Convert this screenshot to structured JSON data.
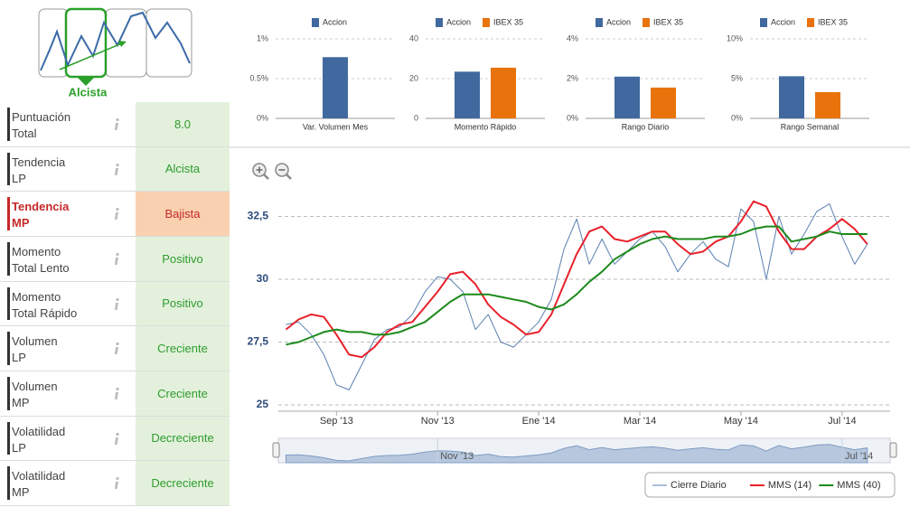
{
  "badge": {
    "label": "Alcista"
  },
  "table": {
    "rows": [
      {
        "label": [
          "Puntuación",
          "Total"
        ],
        "value": "8.0",
        "color": "#2e9b2e",
        "background": "#e3f1dc",
        "label_color": "#444444",
        "label_bold": false
      },
      {
        "label": [
          "Tendencia",
          "LP"
        ],
        "value": "Alcista",
        "color": "#2e9b2e",
        "background": "#e3f1dc",
        "label_color": "#444444",
        "label_bold": false
      },
      {
        "label": [
          "Tendencia",
          "MP"
        ],
        "value": "Bajista",
        "color": "#c62828",
        "background": "#f9d1b0",
        "label_color": "#c62828",
        "label_bold": true
      },
      {
        "label": [
          "Momento",
          "Total Lento"
        ],
        "value": "Positivo",
        "color": "#2e9b2e",
        "background": "#e3f1dc",
        "label_color": "#444444",
        "label_bold": false
      },
      {
        "label": [
          "Momento",
          "Total Rápido"
        ],
        "value": "Positivo",
        "color": "#2e9b2e",
        "background": "#e3f1dc",
        "label_color": "#444444",
        "label_bold": false
      },
      {
        "label": [
          "Volumen",
          "LP"
        ],
        "value": "Creciente",
        "color": "#2e9b2e",
        "background": "#e3f1dc",
        "label_color": "#444444",
        "label_bold": false
      },
      {
        "label": [
          "Volumen",
          "MP"
        ],
        "value": "Creciente",
        "color": "#2e9b2e",
        "background": "#e3f1dc",
        "label_color": "#444444",
        "label_bold": false
      },
      {
        "label": [
          "Volatilidad",
          "LP"
        ],
        "value": "Decreciente",
        "color": "#2e9b2e",
        "background": "#e3f1dc",
        "label_color": "#444444",
        "label_bold": false
      },
      {
        "label": [
          "Volatilidad",
          "MP"
        ],
        "value": "Decreciente",
        "color": "#2e9b2e",
        "background": "#e3f1dc",
        "label_color": "#444444",
        "label_bold": false
      }
    ]
  },
  "chart_data": [
    {
      "type": "bar",
      "categories": [
        "Var. Volumen Mes"
      ],
      "series": [
        {
          "name": "Accion",
          "color": "#41699f",
          "values": [
            0.77
          ]
        }
      ],
      "ylim": [
        0,
        1
      ],
      "yticks": [
        {
          "value": 0,
          "label": "0%"
        },
        {
          "value": 0.5,
          "label": "0.5%"
        },
        {
          "value": 1,
          "label": "1%"
        }
      ],
      "grid": true
    },
    {
      "type": "bar",
      "categories": [
        "Momento Rápido"
      ],
      "series": [
        {
          "name": "Accion",
          "color": "#41699f",
          "values": [
            23.5
          ]
        },
        {
          "name": "IBEX 35",
          "color": "#e8730c",
          "values": [
            25.5
          ]
        }
      ],
      "ylim": [
        0,
        40
      ],
      "yticks": [
        0,
        20,
        40
      ],
      "grid": true
    },
    {
      "type": "bar",
      "categories": [
        "Rango Diario"
      ],
      "series": [
        {
          "name": "Accion",
          "color": "#41699f",
          "values": [
            2.1
          ]
        },
        {
          "name": "IBEX 35",
          "color": "#e8730c",
          "values": [
            1.55
          ]
        }
      ],
      "ylim": [
        0,
        4
      ],
      "yticks": [
        {
          "value": 0,
          "label": "0%"
        },
        {
          "value": 2,
          "label": "2%"
        },
        {
          "value": 4,
          "label": "4%"
        }
      ],
      "grid": true
    },
    {
      "type": "bar",
      "categories": [
        "Rango Semanal"
      ],
      "series": [
        {
          "name": "Accion",
          "color": "#41699f",
          "values": [
            5.3
          ]
        },
        {
          "name": "IBEX 35",
          "color": "#e8730c",
          "values": [
            3.3
          ]
        }
      ],
      "ylim": [
        0,
        10
      ],
      "yticks": [
        {
          "value": 0,
          "label": "0%"
        },
        {
          "value": 5,
          "label": "5%"
        },
        {
          "value": 10,
          "label": "10%"
        }
      ],
      "grid": true
    },
    {
      "type": "line",
      "x": [
        0,
        0.25,
        0.5,
        0.75,
        1,
        1.25,
        1.5,
        1.75,
        2,
        2.25,
        2.5,
        2.75,
        3,
        3.25,
        3.5,
        3.75,
        4,
        4.25,
        4.5,
        4.75,
        5,
        5.25,
        5.5,
        5.75,
        6,
        6.25,
        6.5,
        6.75,
        7,
        7.25,
        7.5,
        7.75,
        8,
        8.25,
        8.5,
        8.75,
        9,
        9.25,
        9.5,
        9.75,
        10,
        10.25,
        10.5,
        10.75,
        11,
        11.25,
        11.5
      ],
      "xlim": [
        -0.15,
        11.95
      ],
      "xticks": [
        {
          "value": 1,
          "label": "Sep '13"
        },
        {
          "value": 3,
          "label": "Nov '13"
        },
        {
          "value": 5,
          "label": "Ene '14"
        },
        {
          "value": 7,
          "label": "Mar '14"
        },
        {
          "value": 9,
          "label": "May '14"
        },
        {
          "value": 11,
          "label": "Jul '14"
        }
      ],
      "navigator_xticks": [
        {
          "value": 3,
          "label": "Nov '13"
        },
        {
          "value": 11,
          "label": "Jul '14"
        }
      ],
      "ylim": [
        24.75,
        34.1
      ],
      "yticks": [
        25,
        {
          "value": 27.5,
          "label": "27,5"
        },
        30,
        {
          "value": 32.5,
          "label": "32,5"
        }
      ],
      "grid": true,
      "legend": "bottom-right",
      "series": [
        {
          "name": "Cierre Diario",
          "color": "#5a7fb0",
          "values": [
            28.2,
            28.3,
            27.8,
            27.0,
            25.8,
            25.6,
            26.6,
            27.6,
            28.0,
            28.1,
            28.6,
            29.5,
            30.1,
            30.0,
            29.5,
            28.0,
            28.6,
            27.5,
            27.3,
            27.8,
            28.3,
            29.2,
            31.2,
            32.4,
            30.6,
            31.6,
            30.6,
            31.1,
            31.6,
            31.9,
            31.3,
            30.3,
            31.0,
            31.5,
            30.8,
            30.5,
            32.8,
            32.3,
            30.0,
            32.5,
            31.0,
            31.8,
            32.7,
            33.0,
            31.7,
            30.6,
            31.4
          ]
        },
        {
          "name": "MMS (14)",
          "color": "#e8202a",
          "values": [
            28.0,
            28.4,
            28.6,
            28.5,
            27.8,
            27.0,
            26.9,
            27.3,
            27.9,
            28.2,
            28.3,
            28.9,
            29.5,
            30.2,
            30.3,
            29.8,
            29.0,
            28.5,
            28.2,
            27.8,
            27.9,
            28.6,
            29.8,
            31.0,
            31.9,
            32.1,
            31.6,
            31.5,
            31.7,
            31.9,
            31.9,
            31.4,
            31.0,
            31.1,
            31.5,
            31.7,
            32.3,
            33.1,
            32.9,
            31.9,
            31.2,
            31.2,
            31.7,
            32.0,
            32.4,
            32.0,
            31.4
          ]
        },
        {
          "name": "MMS (40)",
          "color": "#1c8a1c",
          "values": [
            27.4,
            27.5,
            27.7,
            27.9,
            28.0,
            27.9,
            27.9,
            27.8,
            27.8,
            27.9,
            28.1,
            28.3,
            28.7,
            29.1,
            29.4,
            29.4,
            29.4,
            29.3,
            29.2,
            29.1,
            28.9,
            28.8,
            29.0,
            29.4,
            29.9,
            30.3,
            30.8,
            31.1,
            31.4,
            31.6,
            31.7,
            31.6,
            31.6,
            31.6,
            31.7,
            31.7,
            31.8,
            32.0,
            32.1,
            32.1,
            31.5,
            31.6,
            31.7,
            31.9,
            31.8,
            31.8,
            31.8
          ]
        }
      ]
    }
  ]
}
